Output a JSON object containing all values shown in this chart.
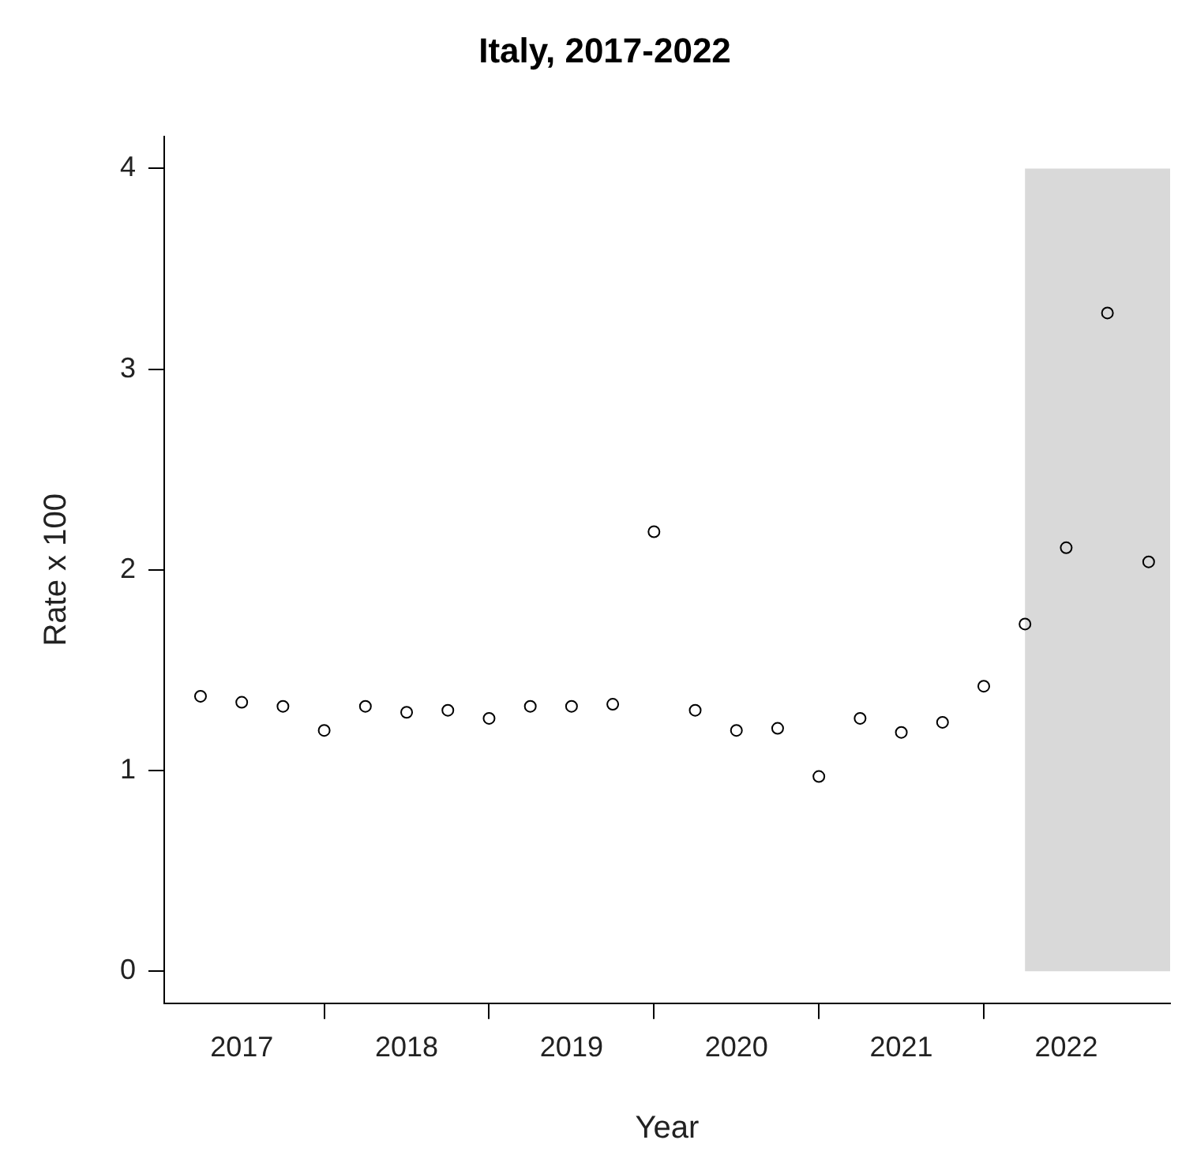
{
  "chart_data": {
    "type": "scatter",
    "title": "Italy, 2017-2022",
    "xlabel": "Year",
    "ylabel": "Rate x 100",
    "x": [
      2017.25,
      2017.5,
      2017.75,
      2018,
      2018.25,
      2018.5,
      2018.75,
      2019,
      2019.25,
      2019.5,
      2019.75,
      2020,
      2020.25,
      2020.5,
      2020.75,
      2021,
      2021.25,
      2021.5,
      2021.75,
      2022,
      2022.25,
      2022.5,
      2022.75,
      2023
    ],
    "series": [
      {
        "color": "#000000",
        "values": [
          1.37,
          1.34,
          1.32,
          1.2,
          1.32,
          1.29,
          1.3,
          1.26,
          1.32,
          1.32,
          1.33,
          2.19,
          1.3,
          1.2,
          1.21,
          0.97,
          1.26,
          1.19,
          1.24,
          1.42,
          1.73,
          2.11,
          3.28,
          2.04
        ]
      }
    ],
    "xlim": [
      2017.03,
      2023.13
    ],
    "xticks": [
      {
        "value": 2017.5,
        "label": "2017"
      },
      {
        "value": 2018,
        "label": null
      },
      {
        "value": 2018.5,
        "label": "2018"
      },
      {
        "value": 2019,
        "label": null
      },
      {
        "value": 2019.5,
        "label": "2019"
      },
      {
        "value": 2020,
        "label": null
      },
      {
        "value": 2020.5,
        "label": "2020"
      },
      {
        "value": 2021,
        "label": null
      },
      {
        "value": 2021.5,
        "label": "2021"
      },
      {
        "value": 2022,
        "label": null
      },
      {
        "value": 2022.5,
        "label": "2022"
      }
    ],
    "ylim": [
      -0.16,
      4.16
    ],
    "yticks": [
      0,
      1,
      2,
      3,
      4
    ],
    "bands": [
      {
        "axis": "x",
        "from": 2022.25,
        "to": 2023.13,
        "color": "#d9d9d9"
      }
    ],
    "grid": false,
    "legend": false,
    "marker": "circle"
  }
}
